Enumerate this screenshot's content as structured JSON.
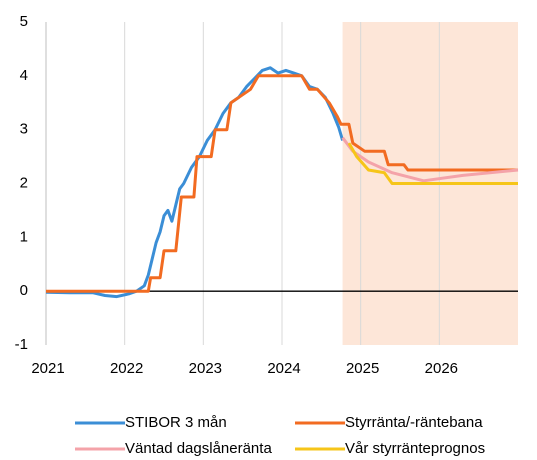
{
  "chart_data": {
    "type": "line",
    "xlim": [
      2021,
      2027
    ],
    "xticks": [
      2021,
      2022,
      2023,
      2024,
      2025,
      2026
    ],
    "ylim": [
      -1,
      5
    ],
    "yticks": [
      -1,
      0,
      1,
      2,
      3,
      4,
      5
    ],
    "grid": "x",
    "shaded_region": [
      2024.77,
      2027
    ],
    "shade_color": "#fde6d8",
    "legend": "bottom",
    "series": [
      {
        "name": "STIBOR 3 mån",
        "color": "#3b8ed6",
        "x": [
          2021,
          2021.3,
          2021.6,
          2021.75,
          2021.9,
          2022.05,
          2022.15,
          2022.25,
          2022.3,
          2022.35,
          2022.4,
          2022.45,
          2022.5,
          2022.55,
          2022.6,
          2022.65,
          2022.7,
          2022.75,
          2022.85,
          2022.95,
          2023.05,
          2023.15,
          2023.25,
          2023.35,
          2023.45,
          2023.55,
          2023.65,
          2023.75,
          2023.85,
          2023.95,
          2024.05,
          2024.15,
          2024.25,
          2024.35,
          2024.45,
          2024.55,
          2024.65,
          2024.72,
          2024.77
        ],
        "values": [
          -0.02,
          -0.03,
          -0.03,
          -0.08,
          -0.1,
          -0.05,
          0.0,
          0.1,
          0.3,
          0.6,
          0.9,
          1.1,
          1.4,
          1.5,
          1.3,
          1.6,
          1.9,
          2.0,
          2.3,
          2.5,
          2.8,
          3.0,
          3.3,
          3.5,
          3.6,
          3.8,
          3.95,
          4.1,
          4.15,
          4.05,
          4.1,
          4.05,
          4.0,
          3.8,
          3.75,
          3.6,
          3.3,
          3.05,
          2.8
        ]
      },
      {
        "name": "Styrränta/-räntebana",
        "color": "#f26b21",
        "x": [
          2021,
          2022.3,
          2022.33,
          2022.45,
          2022.5,
          2022.65,
          2022.72,
          2022.88,
          2022.92,
          2023.1,
          2023.15,
          2023.3,
          2023.35,
          2023.6,
          2023.7,
          2024.25,
          2024.35,
          2024.45,
          2024.6,
          2024.7,
          2024.75,
          2024.85,
          2024.9,
          2025.05,
          2025.1,
          2025.3,
          2025.35,
          2025.55,
          2025.6,
          2027
        ],
        "values": [
          0,
          0,
          0.25,
          0.25,
          0.75,
          0.75,
          1.75,
          1.75,
          2.5,
          2.5,
          3.0,
          3.0,
          3.5,
          3.75,
          4.0,
          4.0,
          3.75,
          3.75,
          3.5,
          3.25,
          3.1,
          3.1,
          2.75,
          2.6,
          2.6,
          2.6,
          2.35,
          2.35,
          2.25,
          2.25
        ]
      },
      {
        "name": "Väntad dagslåneränta",
        "color": "#f4a3a9",
        "x": [
          2024.77,
          2024.9,
          2025.1,
          2025.4,
          2025.8,
          2026.3,
          2027
        ],
        "values": [
          2.85,
          2.6,
          2.4,
          2.2,
          2.05,
          2.15,
          2.25
        ]
      },
      {
        "name": "Vår styrränteprognos",
        "color": "#f6c519",
        "x": [
          2024.85,
          2024.95,
          2025.1,
          2025.3,
          2025.4,
          2027
        ],
        "values": [
          2.75,
          2.5,
          2.25,
          2.2,
          2.0,
          2.0
        ]
      }
    ]
  }
}
